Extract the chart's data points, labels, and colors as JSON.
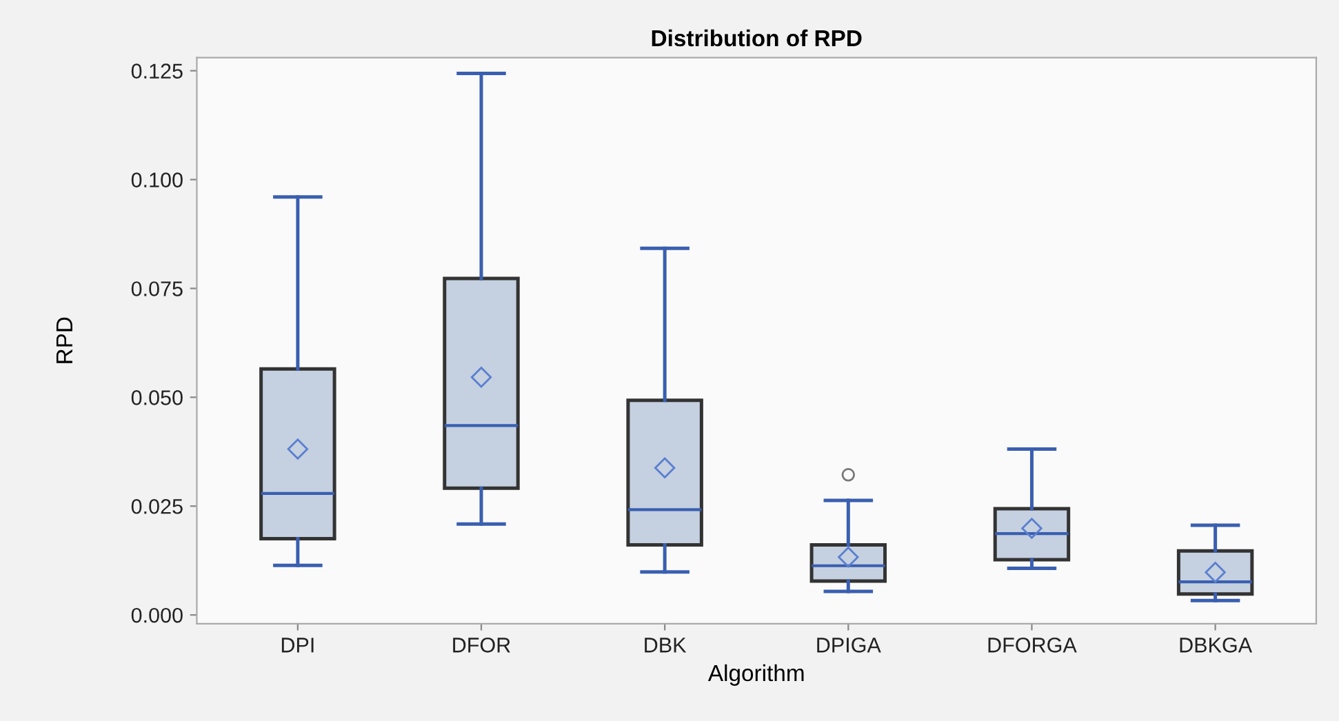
{
  "chart_data": {
    "type": "box",
    "title": "Distribution of RPD",
    "xlabel": "Algorithm",
    "ylabel": "RPD",
    "categories": [
      "DPI",
      "DFOR",
      "DBK",
      "DPIGA",
      "DFORGA",
      "DBKGA"
    ],
    "boxes": [
      {
        "low": 0.0114,
        "q1": 0.0175,
        "median": 0.0279,
        "q3": 0.0565,
        "high": 0.096,
        "mean": 0.0381
      },
      {
        "low": 0.0209,
        "q1": 0.0291,
        "median": 0.0435,
        "q3": 0.0773,
        "high": 0.1244,
        "mean": 0.0546
      },
      {
        "low": 0.0099,
        "q1": 0.0161,
        "median": 0.0242,
        "q3": 0.0493,
        "high": 0.0842,
        "mean": 0.0338
      },
      {
        "low": 0.0054,
        "q1": 0.0078,
        "median": 0.0113,
        "q3": 0.0161,
        "high": 0.0263,
        "mean": 0.0133,
        "outliers": [
          0.0322
        ]
      },
      {
        "low": 0.0107,
        "q1": 0.0127,
        "median": 0.0187,
        "q3": 0.0244,
        "high": 0.0381,
        "mean": 0.0199
      },
      {
        "low": 0.0033,
        "q1": 0.0048,
        "median": 0.0076,
        "q3": 0.0147,
        "high": 0.0206,
        "mean": 0.0098
      }
    ],
    "color": "#c5d0e0",
    "ylim": [
      -0.002,
      0.128
    ],
    "yticks": [
      {
        "value": 0,
        "label": "0.000"
      },
      {
        "value": 0.025,
        "label": "0.025"
      },
      {
        "value": 0.05,
        "label": "0.050"
      },
      {
        "value": 0.075,
        "label": "0.075"
      },
      {
        "value": 0.1,
        "label": "0.100"
      },
      {
        "value": 0.125,
        "label": "0.125"
      }
    ],
    "grid": false
  }
}
